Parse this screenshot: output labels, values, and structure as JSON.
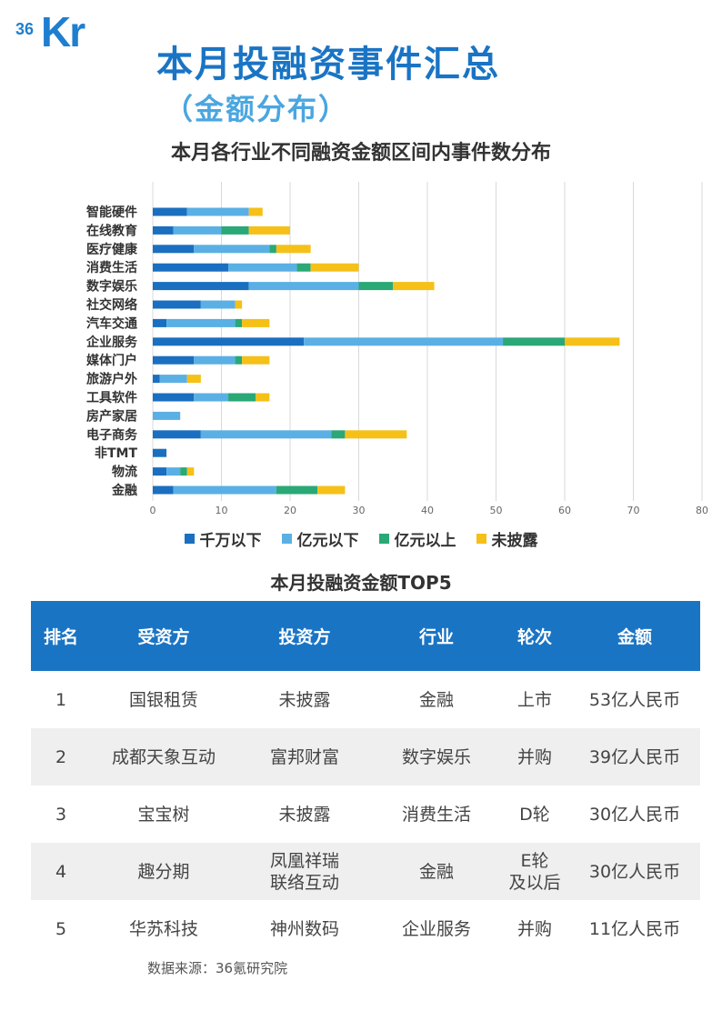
{
  "logo": {
    "superscript": "36",
    "text": "Kr"
  },
  "header": {
    "title": "本月投融资事件汇总",
    "subtitle": "（金额分布）"
  },
  "chart_title": "本月各行业不同融资金额区间内事件数分布",
  "legend": [
    {
      "label": "千万以下",
      "color": "#1a6fc0"
    },
    {
      "label": "亿元以下",
      "color": "#5ab0e4"
    },
    {
      "label": "亿元以上",
      "color": "#2aa876"
    },
    {
      "label": "未披露",
      "color": "#f5c018"
    }
  ],
  "chart_data": {
    "type": "bar",
    "orientation": "horizontal",
    "stacked": true,
    "title": "本月各行业不同融资金额区间内事件数分布",
    "categories": [
      "智能硬件",
      "在线教育",
      "医疗健康",
      "消费生活",
      "数字娱乐",
      "社交网络",
      "汽车交通",
      "企业服务",
      "媒体门户",
      "旅游户外",
      "工具软件",
      "房产家居",
      "电子商务",
      "非TMT",
      "物流",
      "金融"
    ],
    "series": [
      {
        "name": "千万以下",
        "values": [
          5,
          3,
          6,
          11,
          14,
          7,
          2,
          22,
          6,
          1,
          6,
          0,
          7,
          2,
          2,
          3
        ]
      },
      {
        "name": "亿元以下",
        "values": [
          9,
          7,
          11,
          10,
          16,
          5,
          10,
          29,
          6,
          4,
          5,
          4,
          19,
          0,
          2,
          15
        ]
      },
      {
        "name": "亿元以上",
        "values": [
          0,
          4,
          1,
          2,
          5,
          0,
          1,
          9,
          1,
          0,
          4,
          0,
          2,
          0,
          1,
          6
        ]
      },
      {
        "name": "未披露",
        "values": [
          2,
          6,
          5,
          7,
          6,
          1,
          4,
          8,
          4,
          2,
          2,
          0,
          9,
          0,
          1,
          4
        ]
      }
    ],
    "xlim": [
      0,
      80
    ],
    "xticks": [
      0,
      10,
      20,
      30,
      40,
      50,
      60,
      70,
      80
    ],
    "grid": true,
    "legend_position": "bottom"
  },
  "table": {
    "title": "本月投融资金额TOP5",
    "headers": [
      "排名",
      "受资方",
      "投资方",
      "行业",
      "轮次",
      "金额"
    ],
    "rows": [
      [
        "1",
        "国银租赁",
        "未披露",
        "金融",
        "上市",
        "53亿人民币"
      ],
      [
        "2",
        "成都天象互动",
        "富邦财富",
        "数字娱乐",
        "并购",
        "39亿人民币"
      ],
      [
        "3",
        "宝宝树",
        "未披露",
        "消费生活",
        "D轮",
        "30亿人民币"
      ],
      [
        "4",
        "趣分期",
        "凤凰祥瑞\n联络互动",
        "金融",
        "E轮\n及以后",
        "30亿人民币"
      ],
      [
        "5",
        "华苏科技",
        "神州数码",
        "企业服务",
        "并购",
        "11亿人民币"
      ]
    ]
  },
  "source": "数据来源：36氪研究院"
}
